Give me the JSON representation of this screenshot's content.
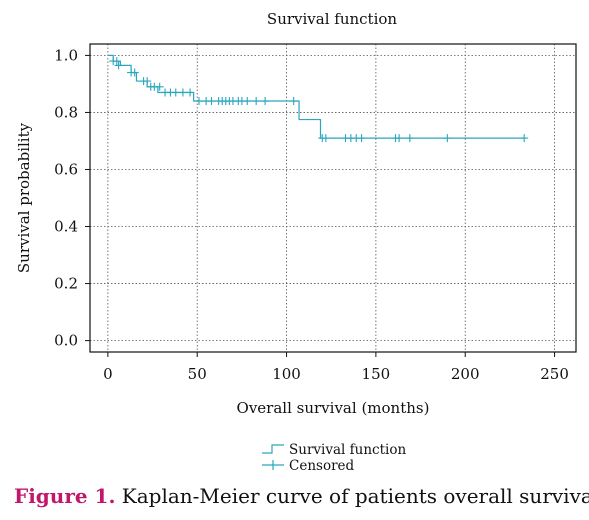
{
  "chart_data": {
    "type": "line",
    "title": "Survival function",
    "xlabel": "Overall survival (months)",
    "ylabel": "Survival probability",
    "xlim": [
      -10,
      262
    ],
    "ylim": [
      -0.04,
      1.04
    ],
    "xticks": [
      0,
      50,
      100,
      150,
      200,
      250
    ],
    "yticks": [
      0.0,
      0.2,
      0.4,
      0.6,
      0.8,
      1.0
    ],
    "ytick_labels": [
      "0.0",
      "0.2",
      "0.4",
      "0.6",
      "0.8",
      "1.0"
    ],
    "grid": true,
    "legend_position": "bottom-center",
    "series": [
      {
        "name": "Survival function",
        "color": "#2aa6be",
        "steps": [
          {
            "x": 0,
            "y": 1.0
          },
          {
            "x": 3,
            "y": 0.98
          },
          {
            "x": 7,
            "y": 0.965
          },
          {
            "x": 13,
            "y": 0.94
          },
          {
            "x": 16,
            "y": 0.91
          },
          {
            "x": 22,
            "y": 0.89
          },
          {
            "x": 28,
            "y": 0.87
          },
          {
            "x": 48,
            "y": 0.84
          },
          {
            "x": 107,
            "y": 0.775
          },
          {
            "x": 119,
            "y": 0.71
          },
          {
            "x": 233,
            "y": 0.71
          }
        ]
      },
      {
        "name": "Censored",
        "color": "#2aa6be",
        "points": [
          {
            "x": 3,
            "y": 0.98
          },
          {
            "x": 5,
            "y": 0.98
          },
          {
            "x": 6,
            "y": 0.965
          },
          {
            "x": 13,
            "y": 0.94
          },
          {
            "x": 15,
            "y": 0.94
          },
          {
            "x": 20,
            "y": 0.91
          },
          {
            "x": 22,
            "y": 0.91
          },
          {
            "x": 24,
            "y": 0.89
          },
          {
            "x": 26,
            "y": 0.89
          },
          {
            "x": 29,
            "y": 0.89
          },
          {
            "x": 32,
            "y": 0.87
          },
          {
            "x": 35,
            "y": 0.87
          },
          {
            "x": 38,
            "y": 0.87
          },
          {
            "x": 42,
            "y": 0.87
          },
          {
            "x": 46,
            "y": 0.87
          },
          {
            "x": 51,
            "y": 0.84
          },
          {
            "x": 55,
            "y": 0.84
          },
          {
            "x": 58,
            "y": 0.84
          },
          {
            "x": 62,
            "y": 0.84
          },
          {
            "x": 64,
            "y": 0.84
          },
          {
            "x": 66,
            "y": 0.84
          },
          {
            "x": 68,
            "y": 0.84
          },
          {
            "x": 70,
            "y": 0.84
          },
          {
            "x": 73,
            "y": 0.84
          },
          {
            "x": 75,
            "y": 0.84
          },
          {
            "x": 78,
            "y": 0.84
          },
          {
            "x": 83,
            "y": 0.84
          },
          {
            "x": 88,
            "y": 0.84
          },
          {
            "x": 104,
            "y": 0.84
          },
          {
            "x": 120,
            "y": 0.71
          },
          {
            "x": 122,
            "y": 0.71
          },
          {
            "x": 133,
            "y": 0.71
          },
          {
            "x": 136,
            "y": 0.71
          },
          {
            "x": 139,
            "y": 0.71
          },
          {
            "x": 142,
            "y": 0.71
          },
          {
            "x": 161,
            "y": 0.71
          },
          {
            "x": 163,
            "y": 0.71
          },
          {
            "x": 169,
            "y": 0.71
          },
          {
            "x": 190,
            "y": 0.71
          },
          {
            "x": 233,
            "y": 0.71
          }
        ]
      }
    ]
  },
  "caption": {
    "figure_label": "Figure 1.",
    "text": " Kaplan-Meier curve of patients overall survival."
  }
}
